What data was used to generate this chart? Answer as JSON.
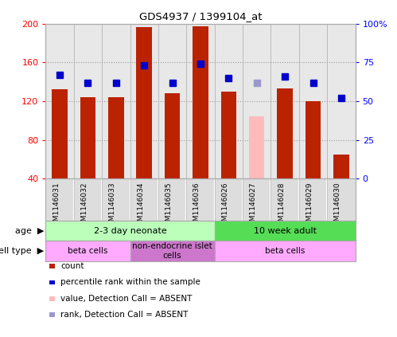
{
  "title": "GDS4937 / 1399104_at",
  "samples": [
    "GSM1146031",
    "GSM1146032",
    "GSM1146033",
    "GSM1146034",
    "GSM1146035",
    "GSM1146036",
    "GSM1146026",
    "GSM1146027",
    "GSM1146028",
    "GSM1146029",
    "GSM1146030"
  ],
  "count_values": [
    132,
    124,
    124,
    196,
    128,
    197,
    130,
    null,
    133,
    120,
    65
  ],
  "count_absent": [
    null,
    null,
    null,
    null,
    null,
    null,
    null,
    104,
    null,
    null,
    null
  ],
  "rank_values": [
    67,
    62,
    62,
    73,
    62,
    74,
    65,
    null,
    66,
    62,
    52
  ],
  "rank_absent": [
    null,
    null,
    null,
    null,
    null,
    null,
    null,
    62,
    null,
    null,
    null
  ],
  "ylim_left": [
    40,
    200
  ],
  "ylim_right": [
    0,
    100
  ],
  "yticks_left": [
    40,
    80,
    120,
    160,
    200
  ],
  "yticks_right": [
    0,
    25,
    50,
    75,
    100
  ],
  "ytick_labels_left": [
    "40",
    "80",
    "120",
    "160",
    "200"
  ],
  "ytick_labels_right": [
    "0",
    "25",
    "50",
    "75",
    "100%"
  ],
  "bar_color": "#bb2200",
  "bar_absent_color": "#ffbbbb",
  "rank_color": "#0000cc",
  "rank_absent_color": "#9999cc",
  "age_groups": [
    {
      "label": "2-3 day neonate",
      "start": 0,
      "end": 6,
      "color": "#bbffbb"
    },
    {
      "label": "10 week adult",
      "start": 6,
      "end": 11,
      "color": "#55dd55"
    }
  ],
  "cell_groups": [
    {
      "label": "beta cells",
      "start": 0,
      "end": 3,
      "color": "#ffaaff"
    },
    {
      "label": "non-endocrine islet\ncells",
      "start": 3,
      "end": 6,
      "color": "#cc77cc"
    },
    {
      "label": "beta cells",
      "start": 6,
      "end": 11,
      "color": "#ffaaff"
    }
  ],
  "age_label": "age",
  "cell_label": "cell type",
  "legend_items": [
    {
      "label": "count",
      "color": "#bb2200"
    },
    {
      "label": "percentile rank within the sample",
      "color": "#0000cc"
    },
    {
      "label": "value, Detection Call = ABSENT",
      "color": "#ffbbbb"
    },
    {
      "label": "rank, Detection Call = ABSENT",
      "color": "#9999cc"
    }
  ],
  "bar_width": 0.55,
  "rank_marker_size": 6,
  "grid_color": "#999999",
  "plot_bg": "#e8e8e8",
  "spine_color": "#aaaaaa",
  "sample_bg": "#dddddd"
}
